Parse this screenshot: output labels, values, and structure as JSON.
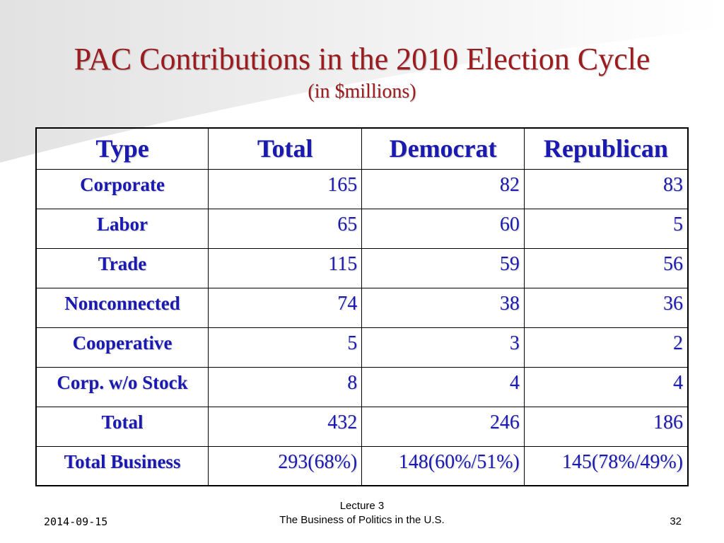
{
  "slide": {
    "title": "PAC Contributions in the 2010 Election Cycle",
    "subtitle": "(in $millions)",
    "colors": {
      "title": "#9b1b1e",
      "table_text": "#1a1ab0",
      "background_swoosh": "#e9e9e9"
    }
  },
  "table": {
    "headers": [
      "Type",
      "Total",
      "Democrat",
      "Republican"
    ],
    "rows": [
      [
        "Corporate",
        "165",
        "82",
        "83"
      ],
      [
        "Labor",
        "65",
        "60",
        "5"
      ],
      [
        "Trade",
        "115",
        "59",
        "56"
      ],
      [
        "Nonconnected",
        "74",
        "38",
        "36"
      ],
      [
        "Cooperative",
        "5",
        "3",
        "2"
      ],
      [
        "Corp. w/o Stock",
        "8",
        "4",
        "4"
      ],
      [
        "Total",
        "432",
        "246",
        "186"
      ],
      [
        "Total Business",
        "293(68%)",
        "148(60%/51%)",
        "145(78%/49%)"
      ]
    ]
  },
  "footer": {
    "date": "2014-09-15",
    "lecture": "Lecture 3",
    "course": "The Business of Politics in the U.S.",
    "page": "32"
  }
}
